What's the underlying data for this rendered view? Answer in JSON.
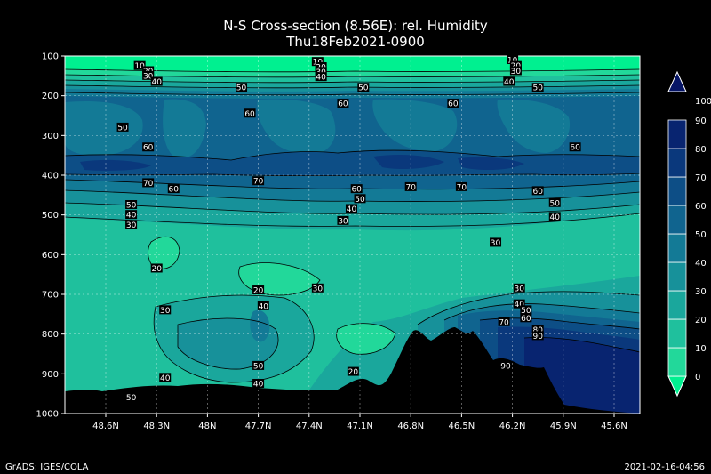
{
  "chart_data": {
    "type": "contour",
    "title": "N-S Cross-section (8.56E): rel. Humidity",
    "subtitle": "Thu18Feb2021-0900",
    "y_axis": {
      "ticks": [
        "100",
        "200",
        "300",
        "400",
        "500",
        "600",
        "700",
        "800",
        "900",
        "1000"
      ],
      "range": [
        100,
        1000
      ]
    },
    "x_axis": {
      "ticks": [
        "48.6N",
        "48.3N",
        "48N",
        "47.7N",
        "47.4N",
        "47.1N",
        "46.8N",
        "46.5N",
        "46.2N",
        "45.9N",
        "45.6N"
      ]
    },
    "colorbar": {
      "ticks": [
        "0",
        "10",
        "20",
        "30",
        "40",
        "50",
        "60",
        "70",
        "80",
        "90",
        "100"
      ],
      "colors": [
        "#00f090",
        "#22d89a",
        "#1fc09d",
        "#1aa79c",
        "#17919a",
        "#137a96",
        "#10648f",
        "#0d4e86",
        "#0a387c",
        "#082470",
        "#061566"
      ]
    },
    "contour_labels": [
      {
        "text": "10",
        "x": 48.4,
        "p": 125
      },
      {
        "text": "20",
        "x": 48.35,
        "p": 138
      },
      {
        "text": "30",
        "x": 48.35,
        "p": 150
      },
      {
        "text": "40",
        "x": 48.3,
        "p": 165
      },
      {
        "text": "10",
        "x": 47.35,
        "p": 115
      },
      {
        "text": "20",
        "x": 47.33,
        "p": 128
      },
      {
        "text": "30",
        "x": 47.33,
        "p": 140
      },
      {
        "text": "40",
        "x": 47.33,
        "p": 153
      },
      {
        "text": "10",
        "x": 46.2,
        "p": 110
      },
      {
        "text": "20",
        "x": 46.18,
        "p": 125
      },
      {
        "text": "30",
        "x": 46.18,
        "p": 138
      },
      {
        "text": "40",
        "x": 46.22,
        "p": 165
      },
      {
        "text": "50",
        "x": 47.8,
        "p": 180
      },
      {
        "text": "50",
        "x": 47.08,
        "p": 180
      },
      {
        "text": "50",
        "x": 46.05,
        "p": 180
      },
      {
        "text": "60",
        "x": 47.75,
        "p": 245
      },
      {
        "text": "60",
        "x": 47.2,
        "p": 220
      },
      {
        "text": "60",
        "x": 46.55,
        "p": 220
      },
      {
        "text": "50",
        "x": 48.5,
        "p": 280
      },
      {
        "text": "60",
        "x": 48.35,
        "p": 330
      },
      {
        "text": "60",
        "x": 45.83,
        "p": 330
      },
      {
        "text": "70",
        "x": 48.35,
        "p": 420
      },
      {
        "text": "60",
        "x": 48.2,
        "p": 435
      },
      {
        "text": "70",
        "x": 47.7,
        "p": 415
      },
      {
        "text": "60",
        "x": 47.12,
        "p": 435
      },
      {
        "text": "50",
        "x": 47.1,
        "p": 460
      },
      {
        "text": "40",
        "x": 47.15,
        "p": 485
      },
      {
        "text": "30",
        "x": 47.2,
        "p": 515
      },
      {
        "text": "70",
        "x": 46.8,
        "p": 430
      },
      {
        "text": "70",
        "x": 46.5,
        "p": 430
      },
      {
        "text": "60",
        "x": 46.05,
        "p": 440
      },
      {
        "text": "50",
        "x": 48.45,
        "p": 475
      },
      {
        "text": "40",
        "x": 48.45,
        "p": 500
      },
      {
        "text": "30",
        "x": 48.45,
        "p": 525
      },
      {
        "text": "50",
        "x": 45.95,
        "p": 470
      },
      {
        "text": "40",
        "x": 45.95,
        "p": 505
      },
      {
        "text": "30",
        "x": 46.3,
        "p": 570
      },
      {
        "text": "20",
        "x": 48.3,
        "p": 635
      },
      {
        "text": "20",
        "x": 47.7,
        "p": 690
      },
      {
        "text": "30",
        "x": 47.35,
        "p": 685
      },
      {
        "text": "30",
        "x": 48.25,
        "p": 740
      },
      {
        "text": "40",
        "x": 47.67,
        "p": 730
      },
      {
        "text": "30",
        "x": 46.16,
        "p": 685
      },
      {
        "text": "40",
        "x": 46.16,
        "p": 725
      },
      {
        "text": "50",
        "x": 46.12,
        "p": 740
      },
      {
        "text": "60",
        "x": 46.12,
        "p": 760
      },
      {
        "text": "70",
        "x": 46.25,
        "p": 770
      },
      {
        "text": "80",
        "x": 46.05,
        "p": 790
      },
      {
        "text": "90",
        "x": 46.05,
        "p": 805
      },
      {
        "text": "50",
        "x": 47.7,
        "p": 880
      },
      {
        "text": "40",
        "x": 47.7,
        "p": 925
      },
      {
        "text": "40",
        "x": 48.25,
        "p": 910
      },
      {
        "text": "20",
        "x": 47.14,
        "p": 895
      },
      {
        "text": "90",
        "x": 46.24,
        "p": 880
      },
      {
        "text": "50",
        "x": 48.45,
        "p": 960
      }
    ]
  },
  "footer": {
    "left": "GrADS: IGES/COLA",
    "right": "2021-02-16-04:56"
  }
}
